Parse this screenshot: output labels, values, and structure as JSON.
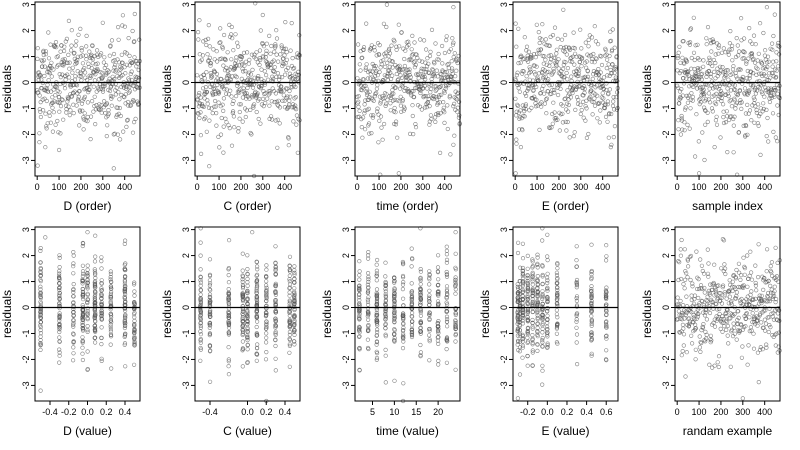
{
  "figure": {
    "background": "#ffffff",
    "point_color": "#555555"
  },
  "chart_data": [
    {
      "type": "scatter",
      "xlabel": "D (order)",
      "ylabel": "residuals",
      "xlim": [
        -10,
        470
      ],
      "ylim": [
        -3.6,
        3.1
      ],
      "xticks": [
        0,
        100,
        200,
        300,
        400
      ],
      "xtick_labels": [
        "0",
        "100",
        "200",
        "300",
        "400"
      ],
      "yticks": [
        -3,
        -2,
        -1,
        0,
        1,
        2,
        3
      ],
      "ytick_labels": [
        "-3",
        "-2",
        "-1",
        "0",
        "1",
        "2",
        "3"
      ],
      "hline": 0,
      "x_pattern": "index",
      "n_points": 470,
      "points": [
        [
          2,
          -3.2
        ],
        [
          10,
          -2.3
        ],
        [
          40,
          1.2
        ],
        [
          100,
          -2.6
        ],
        [
          300,
          2.3
        ],
        [
          350,
          -2.0
        ],
        [
          450,
          -1.4
        ]
      ]
    },
    {
      "type": "scatter",
      "xlabel": "C (order)",
      "ylabel": "residuals",
      "xlim": [
        -10,
        470
      ],
      "ylim": [
        -3.6,
        3.1
      ],
      "xticks": [
        0,
        100,
        200,
        300,
        400
      ],
      "xtick_labels": [
        "0",
        "100",
        "200",
        "300",
        "400"
      ],
      "yticks": [
        -3,
        -2,
        -1,
        0,
        1,
        2,
        3
      ],
      "ytick_labels": [
        "-3",
        "-2",
        "-1",
        "0",
        "1",
        "2",
        "3"
      ],
      "hline": 0,
      "x_pattern": "index",
      "n_points": 470,
      "points": [
        [
          10,
          2.4
        ],
        [
          120,
          -2.7
        ],
        [
          260,
          -3.6
        ],
        [
          300,
          2.6
        ]
      ]
    },
    {
      "type": "scatter",
      "xlabel": "time (order)",
      "ylabel": "residuals",
      "xlim": [
        -10,
        470
      ],
      "ylim": [
        -3.6,
        3.1
      ],
      "xticks": [
        0,
        100,
        200,
        300,
        400
      ],
      "xtick_labels": [
        "0",
        "100",
        "200",
        "300",
        "400"
      ],
      "yticks": [
        -3,
        -2,
        -1,
        0,
        1,
        2,
        3
      ],
      "ytick_labels": [
        "-3",
        "-2",
        "-1",
        "0",
        "1",
        "2",
        "3"
      ],
      "hline": 0,
      "x_pattern": "index",
      "n_points": 470,
      "points": [
        [
          190,
          -3.5
        ],
        [
          440,
          2.9
        ],
        [
          440,
          -2.4
        ]
      ]
    },
    {
      "type": "scatter",
      "xlabel": "E (order)",
      "ylabel": "residuals",
      "xlim": [
        -10,
        470
      ],
      "ylim": [
        -3.6,
        3.1
      ],
      "xticks": [
        0,
        100,
        200,
        300,
        400
      ],
      "xtick_labels": [
        "0",
        "100",
        "200",
        "300",
        "400"
      ],
      "yticks": [
        -3,
        -2,
        -1,
        0,
        1,
        2,
        3
      ],
      "ytick_labels": [
        "-3",
        "-2",
        "-1",
        "0",
        "1",
        "2",
        "3"
      ],
      "hline": 0,
      "x_pattern": "index",
      "n_points": 470,
      "points": [
        [
          2,
          -3.5
        ],
        [
          5,
          -2.2
        ],
        [
          220,
          2.8
        ],
        [
          440,
          -2.4
        ]
      ]
    },
    {
      "type": "scatter",
      "xlabel": "sample index",
      "ylabel": "residuals",
      "xlim": [
        -10,
        470
      ],
      "ylim": [
        -3.6,
        3.1
      ],
      "xticks": [
        0,
        100,
        200,
        300,
        400
      ],
      "xtick_labels": [
        "0",
        "100",
        "200",
        "300",
        "400"
      ],
      "yticks": [
        -3,
        -2,
        -1,
        0,
        1,
        2,
        3
      ],
      "ytick_labels": [
        "-3",
        "-2",
        "-1",
        "0",
        "1",
        "2",
        "3"
      ],
      "hline": 0,
      "x_pattern": "index",
      "n_points": 470,
      "points": [
        [
          100,
          -3.5
        ],
        [
          410,
          2.9
        ],
        [
          440,
          -1.9
        ]
      ]
    },
    {
      "type": "scatter",
      "xlabel": "D (value)",
      "ylabel": "residuals",
      "xlim": [
        -0.56,
        0.56
      ],
      "ylim": [
        -3.6,
        3.1
      ],
      "xticks": [
        -0.4,
        -0.2,
        0.0,
        0.2,
        0.4
      ],
      "xtick_labels": [
        "-0.4",
        "-0.2",
        "0.0",
        "0.2",
        "0.4"
      ],
      "yticks": [
        -3,
        -2,
        -1,
        0,
        1,
        2,
        3
      ],
      "ytick_labels": [
        "-3",
        "-2",
        "-1",
        "0",
        "1",
        "2",
        "3"
      ],
      "hline": 0,
      "x_pattern": "clusters",
      "x_clusters": [
        -0.5,
        -0.3,
        -0.15,
        -0.05,
        0.0,
        0.08,
        0.15,
        0.25,
        0.4,
        0.5
      ],
      "n_points": 470,
      "points": [
        [
          -0.5,
          -3.2
        ],
        [
          -0.45,
          2.7
        ],
        [
          0.0,
          2.9
        ],
        [
          0.0,
          -2.4
        ]
      ]
    },
    {
      "type": "scatter",
      "xlabel": "C (value)",
      "ylabel": "residuals",
      "xlim": [
        -0.56,
        0.56
      ],
      "ylim": [
        -3.6,
        3.1
      ],
      "xticks": [
        -0.4,
        0.0,
        0.2,
        0.4
      ],
      "xtick_labels": [
        "-0.4",
        "0.0",
        "0.2",
        "0.4"
      ],
      "yticks": [
        -3,
        -2,
        -1,
        0,
        1,
        2,
        3
      ],
      "ytick_labels": [
        "-3",
        "-2",
        "-1",
        "0",
        "1",
        "2",
        "3"
      ],
      "hline": 0,
      "x_pattern": "clusters",
      "x_clusters": [
        -0.5,
        -0.4,
        -0.2,
        -0.05,
        0.0,
        0.1,
        0.2,
        0.3,
        0.45,
        0.5
      ],
      "n_points": 470,
      "points": [
        [
          0.2,
          -3.6
        ],
        [
          0.05,
          2.9
        ],
        [
          -0.5,
          2.5
        ]
      ]
    },
    {
      "type": "scatter",
      "xlabel": "time (value)",
      "ylabel": "residuals",
      "xlim": [
        1,
        25
      ],
      "ylim": [
        -3.6,
        3.1
      ],
      "xticks": [
        5,
        10,
        15,
        20
      ],
      "xtick_labels": [
        "5",
        "10",
        "15",
        "20"
      ],
      "yticks": [
        -3,
        -2,
        -1,
        0,
        1,
        2,
        3
      ],
      "ytick_labels": [
        "-3",
        "-2",
        "-1",
        "0",
        "1",
        "2",
        "3"
      ],
      "hline": 0,
      "x_pattern": "clusters",
      "x_clusters": [
        2,
        4,
        6,
        8,
        10,
        12,
        14,
        16,
        18,
        20,
        22,
        24
      ],
      "n_points": 470,
      "points": [
        [
          12,
          -3.6
        ],
        [
          24,
          2.9
        ],
        [
          24,
          -2.4
        ]
      ]
    },
    {
      "type": "scatter",
      "xlabel": "E (value)",
      "ylabel": "residuals",
      "xlim": [
        -0.35,
        0.72
      ],
      "ylim": [
        -3.6,
        3.1
      ],
      "xticks": [
        -0.2,
        0.0,
        0.2,
        0.4,
        0.6
      ],
      "xtick_labels": [
        "-0.2",
        "0.0",
        "0.2",
        "0.4",
        "0.6"
      ],
      "yticks": [
        -3,
        -2,
        -1,
        0,
        1,
        2,
        3
      ],
      "ytick_labels": [
        "-3",
        "-2",
        "-1",
        "0",
        "1",
        "2",
        "3"
      ],
      "hline": 0,
      "x_pattern": "clusters",
      "x_clusters": [
        -0.3,
        -0.28,
        -0.25,
        -0.2,
        -0.15,
        -0.1,
        -0.05,
        0.0,
        0.1,
        0.3,
        0.45,
        0.6
      ],
      "n_points": 470,
      "points": [
        [
          -0.3,
          -3.5
        ],
        [
          0.0,
          2.8
        ],
        [
          0.6,
          2.4
        ]
      ]
    },
    {
      "type": "scatter",
      "xlabel": "randam example",
      "ylabel": "residuals",
      "xlim": [
        -10,
        470
      ],
      "ylim": [
        -3.6,
        3.1
      ],
      "xticks": [
        0,
        100,
        200,
        300,
        400
      ],
      "xtick_labels": [
        "0",
        "100",
        "200",
        "300",
        "400"
      ],
      "yticks": [
        -3,
        -2,
        -1,
        0,
        1,
        2,
        3
      ],
      "ytick_labels": [
        "-3",
        "-2",
        "-1",
        "0",
        "1",
        "2",
        "3"
      ],
      "hline": 0,
      "x_pattern": "index",
      "n_points": 470,
      "points": [
        [
          300,
          -3.5
        ],
        [
          20,
          2.6
        ],
        [
          450,
          2.3
        ]
      ]
    }
  ]
}
